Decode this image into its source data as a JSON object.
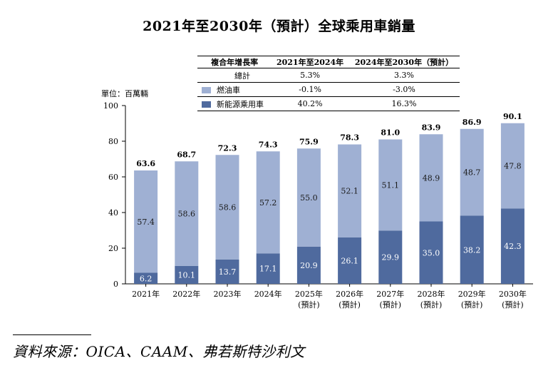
{
  "title": "2021年至2030年（預計）全球乘用車銷量",
  "cagr_table": {
    "headers": [
      "複合年增長率",
      "2021年至2024年",
      "2024年至2030年（預計）"
    ],
    "rows": [
      {
        "label": "總計",
        "a": "5.3%",
        "b": "3.3%"
      },
      {
        "label": "燃油車",
        "a": "-0.1%",
        "b": "-3.0%"
      },
      {
        "label": "新能源乘用車",
        "a": "40.2%",
        "b": "16.3%"
      }
    ]
  },
  "unit_label": "單位：百萬輛",
  "source": "資料來源：OICA、CAAM、弗若斯特沙利文",
  "colors": {
    "fuel": "#9fb0d3",
    "nev": "#4f6a9e"
  },
  "chart_data": {
    "type": "bar",
    "stacked": true,
    "categories": [
      "2021年",
      "2022年",
      "2023年",
      "2024年",
      "2025年",
      "2026年",
      "2027年",
      "2028年",
      "2029年",
      "2030年"
    ],
    "category_sublabels": [
      "",
      "",
      "",
      "",
      "(預計)",
      "(預計)",
      "(預計)",
      "(預計)",
      "(預計)",
      "(預計)"
    ],
    "series": [
      {
        "name": "新能源乘用車",
        "values": [
          6.2,
          10.1,
          13.7,
          17.1,
          20.9,
          26.1,
          29.9,
          35.0,
          38.2,
          42.3
        ]
      },
      {
        "name": "燃油車",
        "values": [
          57.4,
          58.6,
          58.6,
          57.2,
          55.0,
          52.1,
          51.1,
          48.9,
          48.7,
          47.8
        ]
      }
    ],
    "totals": [
      63.6,
      68.7,
      72.3,
      74.3,
      75.9,
      78.3,
      81.0,
      83.9,
      86.9,
      90.1
    ],
    "ylim": [
      0,
      100
    ],
    "yticks": [
      0,
      20,
      40,
      60,
      80,
      100
    ],
    "ylabel": "單位：百萬輛"
  }
}
